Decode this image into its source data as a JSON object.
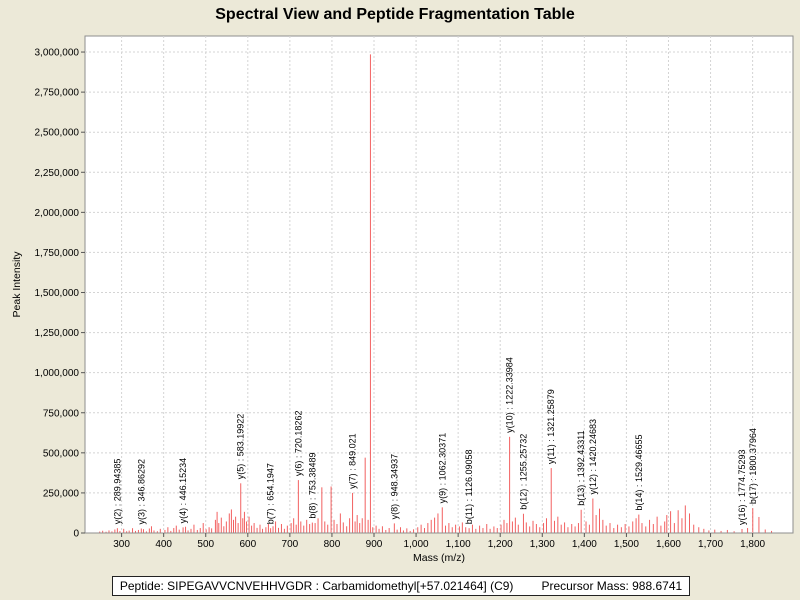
{
  "title": "Spectral View and Peptide Fragmentation Table",
  "footer": {
    "peptide_text": "Peptide: SIPEGAVVCNVEHHVGDR : Carbamidomethyl[+57.021464] (C9)",
    "precursor_text": "Precursor Mass: 988.6741"
  },
  "colors": {
    "background": "#ece9d8",
    "plot_background": "#ffffff",
    "peak": "#f26060",
    "grid": "#d4d4d4",
    "border": "#8e8e8e",
    "text": "#000000"
  },
  "chart_data": {
    "type": "bar",
    "title": "Spectral View and Peptide Fragmentation Table",
    "xlabel": "Mass (m/z)",
    "ylabel": "Peak Intensity",
    "xlim": [
      213,
      1896
    ],
    "ylim": [
      0,
      3100000
    ],
    "grid": "dashed",
    "legend": "none",
    "x_tick_values": [
      300,
      400,
      500,
      600,
      700,
      800,
      900,
      1000,
      1100,
      1200,
      1300,
      1400,
      1500,
      1600,
      1700,
      1800
    ],
    "x_tick_labels": [
      "300",
      "400",
      "500",
      "600",
      "700",
      "800",
      "900",
      "1,000",
      "1,100",
      "1,200",
      "1,300",
      "1,400",
      "1,500",
      "1,600",
      "1,700",
      "1,800"
    ],
    "y_tick_values": [
      0,
      250000,
      500000,
      750000,
      1000000,
      1250000,
      1500000,
      1750000,
      2000000,
      2250000,
      2500000,
      2750000,
      3000000
    ],
    "y_tick_labels": [
      "0",
      "250,000",
      "500,000",
      "750,000",
      "1,000,000",
      "1,250,000",
      "1,500,000",
      "1,750,000",
      "2,000,000",
      "2,250,000",
      "2,500,000",
      "2,750,000",
      "3,000,000"
    ],
    "labeled_peaks": [
      {
        "label": "y(2) : 289.94385",
        "mz": 289.94385,
        "intensity": 30000
      },
      {
        "label": "y(3) : 346.86292",
        "mz": 346.86292,
        "intensity": 28000
      },
      {
        "label": "y(4) : 446.15234",
        "mz": 446.15234,
        "intensity": 35000
      },
      {
        "label": "y(5) : 583.19922",
        "mz": 583.19922,
        "intensity": 310000
      },
      {
        "label": "b(7) : 654.1947",
        "mz": 654.1947,
        "intensity": 30000
      },
      {
        "label": "y(6) : 720.18262",
        "mz": 720.18262,
        "intensity": 330000
      },
      {
        "label": "b(8) : 753.38489",
        "mz": 753.38489,
        "intensity": 65000
      },
      {
        "label": "y(7) : 849.021",
        "mz": 849.021,
        "intensity": 250000
      },
      {
        "label": "y(8) : 948.34937",
        "mz": 948.34937,
        "intensity": 60000
      },
      {
        "label": "y(9) : 1062.30371",
        "mz": 1062.30371,
        "intensity": 160000
      },
      {
        "label": "b(11) : 1126.09058",
        "mz": 1126.09058,
        "intensity": 30000
      },
      {
        "label": "y(10) : 1222.33984",
        "mz": 1222.33984,
        "intensity": 600000
      },
      {
        "label": "b(12) : 1255.25732",
        "mz": 1255.25732,
        "intensity": 120000
      },
      {
        "label": "y(11) : 1321.25879",
        "mz": 1321.25879,
        "intensity": 405000
      },
      {
        "label": "b(13) : 1392.43311",
        "mz": 1392.43311,
        "intensity": 145000
      },
      {
        "label": "y(12) : 1420.24683",
        "mz": 1420.24683,
        "intensity": 215000
      },
      {
        "label": "b(14) : 1529.46655",
        "mz": 1529.46655,
        "intensity": 115000
      },
      {
        "label": "y(16) : 1774.75293",
        "mz": 1774.75293,
        "intensity": 25000
      },
      {
        "label": "b(17) : 1800.37964",
        "mz": 1800.37964,
        "intensity": 155000
      }
    ],
    "unlabeled_peaks": [
      [
        248,
        9000
      ],
      [
        255,
        14000
      ],
      [
        263,
        8000
      ],
      [
        270,
        16000
      ],
      [
        277,
        10000
      ],
      [
        284,
        22000
      ],
      [
        296,
        12000
      ],
      [
        305,
        26000
      ],
      [
        312,
        11000
      ],
      [
        318,
        15000
      ],
      [
        326,
        30000
      ],
      [
        333,
        13000
      ],
      [
        340,
        19000
      ],
      [
        352,
        24000
      ],
      [
        359,
        10000
      ],
      [
        366,
        28000
      ],
      [
        371,
        42000
      ],
      [
        377,
        16000
      ],
      [
        385,
        11000
      ],
      [
        392,
        26000
      ],
      [
        403,
        19000
      ],
      [
        410,
        36000
      ],
      [
        417,
        13000
      ],
      [
        424,
        31000
      ],
      [
        430,
        46000
      ],
      [
        437,
        21000
      ],
      [
        452,
        39000
      ],
      [
        458,
        16000
      ],
      [
        465,
        26000
      ],
      [
        472,
        52000
      ],
      [
        480,
        19000
      ],
      [
        487,
        31000
      ],
      [
        494,
        62000
      ],
      [
        501,
        23000
      ],
      [
        508,
        36000
      ],
      [
        514,
        29000
      ],
      [
        523,
        82000
      ],
      [
        527,
        132000
      ],
      [
        531,
        62000
      ],
      [
        537,
        96000
      ],
      [
        543,
        42000
      ],
      [
        549,
        72000
      ],
      [
        556,
        122000
      ],
      [
        561,
        147000
      ],
      [
        566,
        82000
      ],
      [
        571,
        102000
      ],
      [
        577,
        62000
      ],
      [
        588,
        92000
      ],
      [
        592,
        132000
      ],
      [
        597,
        72000
      ],
      [
        603,
        102000
      ],
      [
        609,
        46000
      ],
      [
        615,
        62000
      ],
      [
        622,
        32000
      ],
      [
        629,
        52000
      ],
      [
        635,
        26000
      ],
      [
        643,
        36000
      ],
      [
        649,
        56000
      ],
      [
        660,
        42000
      ],
      [
        666,
        72000
      ],
      [
        673,
        32000
      ],
      [
        680,
        56000
      ],
      [
        687,
        26000
      ],
      [
        694,
        46000
      ],
      [
        703,
        62000
      ],
      [
        709,
        92000
      ],
      [
        715,
        52000
      ],
      [
        726,
        72000
      ],
      [
        733,
        46000
      ],
      [
        740,
        82000
      ],
      [
        747,
        56000
      ],
      [
        760,
        62000
      ],
      [
        767,
        92000
      ],
      [
        776,
        285000
      ],
      [
        783,
        72000
      ],
      [
        790,
        52000
      ],
      [
        798,
        290000
      ],
      [
        805,
        82000
      ],
      [
        812,
        56000
      ],
      [
        820,
        122000
      ],
      [
        827,
        66000
      ],
      [
        835,
        42000
      ],
      [
        842,
        92000
      ],
      [
        855,
        72000
      ],
      [
        860,
        112000
      ],
      [
        866,
        62000
      ],
      [
        872,
        92000
      ],
      [
        879,
        470000
      ],
      [
        886,
        82000
      ],
      [
        891.5,
        2985000
      ],
      [
        897,
        36000
      ],
      [
        905,
        46000
      ],
      [
        912,
        26000
      ],
      [
        920,
        42000
      ],
      [
        928,
        19000
      ],
      [
        936,
        31000
      ],
      [
        955,
        21000
      ],
      [
        963,
        36000
      ],
      [
        970,
        16000
      ],
      [
        978,
        29000
      ],
      [
        986,
        13000
      ],
      [
        994,
        23000
      ],
      [
        1004,
        36000
      ],
      [
        1012,
        52000
      ],
      [
        1020,
        31000
      ],
      [
        1028,
        62000
      ],
      [
        1036,
        82000
      ],
      [
        1044,
        96000
      ],
      [
        1052,
        122000
      ],
      [
        1070,
        46000
      ],
      [
        1078,
        62000
      ],
      [
        1086,
        36000
      ],
      [
        1094,
        52000
      ],
      [
        1103,
        41000
      ],
      [
        1110,
        66000
      ],
      [
        1118,
        36000
      ],
      [
        1134,
        52000
      ],
      [
        1142,
        26000
      ],
      [
        1151,
        46000
      ],
      [
        1159,
        31000
      ],
      [
        1168,
        56000
      ],
      [
        1176,
        26000
      ],
      [
        1185,
        41000
      ],
      [
        1193,
        31000
      ],
      [
        1202,
        52000
      ],
      [
        1209,
        82000
      ],
      [
        1216,
        62000
      ],
      [
        1229,
        72000
      ],
      [
        1236,
        96000
      ],
      [
        1243,
        52000
      ],
      [
        1262,
        66000
      ],
      [
        1270,
        41000
      ],
      [
        1278,
        76000
      ],
      [
        1286,
        56000
      ],
      [
        1294,
        36000
      ],
      [
        1303,
        62000
      ],
      [
        1310,
        92000
      ],
      [
        1329,
        76000
      ],
      [
        1337,
        102000
      ],
      [
        1345,
        52000
      ],
      [
        1353,
        66000
      ],
      [
        1361,
        36000
      ],
      [
        1370,
        56000
      ],
      [
        1378,
        41000
      ],
      [
        1386,
        62000
      ],
      [
        1404,
        72000
      ],
      [
        1412,
        52000
      ],
      [
        1428,
        112000
      ],
      [
        1436,
        152000
      ],
      [
        1444,
        82000
      ],
      [
        1452,
        46000
      ],
      [
        1461,
        62000
      ],
      [
        1470,
        31000
      ],
      [
        1479,
        52000
      ],
      [
        1488,
        36000
      ],
      [
        1497,
        56000
      ],
      [
        1506,
        41000
      ],
      [
        1515,
        72000
      ],
      [
        1523,
        92000
      ],
      [
        1537,
        62000
      ],
      [
        1546,
        41000
      ],
      [
        1555,
        82000
      ],
      [
        1564,
        56000
      ],
      [
        1573,
        102000
      ],
      [
        1582,
        46000
      ],
      [
        1591,
        72000
      ],
      [
        1596,
        112000
      ],
      [
        1605,
        136000
      ],
      [
        1614,
        62000
      ],
      [
        1623,
        142000
      ],
      [
        1632,
        92000
      ],
      [
        1640,
        172000
      ],
      [
        1650,
        122000
      ],
      [
        1660,
        52000
      ],
      [
        1672,
        36000
      ],
      [
        1684,
        26000
      ],
      [
        1696,
        16000
      ],
      [
        1710,
        21000
      ],
      [
        1725,
        13000
      ],
      [
        1740,
        19000
      ],
      [
        1756,
        11000
      ],
      [
        1788,
        31000
      ],
      [
        1815,
        100000
      ],
      [
        1830,
        22000
      ],
      [
        1845,
        13000
      ]
    ]
  }
}
